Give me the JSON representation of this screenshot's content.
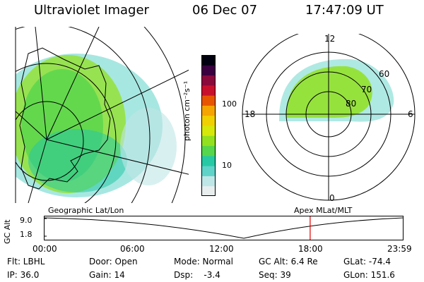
{
  "header": {
    "instrument": "Ultraviolet Imager",
    "date": "06 Dec 07",
    "time": "17:47:09 UT"
  },
  "colorbar": {
    "unit_label": "photon cm⁻²s⁻¹",
    "tick_labels": [
      "100",
      "10"
    ],
    "colors": [
      "#e8eeee",
      "#bfe6e6",
      "#5fd3c8",
      "#27c9a5",
      "#56d64c",
      "#92e020",
      "#d5e80a",
      "#f0d000",
      "#f5a400",
      "#e85500",
      "#c8102d",
      "#8a0a3c",
      "#3a0040",
      "#000010"
    ]
  },
  "polar_plot": {
    "mlt_labels": {
      "top": "12",
      "left": "18",
      "right": "6",
      "bottom": "0"
    },
    "mlat_labels": [
      "60",
      "70",
      "80"
    ]
  },
  "timeline": {
    "y_axis_label": "GC Alt",
    "y_ticks": [
      "9.0",
      "1.8"
    ],
    "left_caption": "Geographic Lat/Lon",
    "right_caption": "Apex  MLat/MLT",
    "x_ticks": [
      "00:00",
      "06:00",
      "12:00",
      "18:00",
      "23:59"
    ],
    "current_time_fraction": 0.7414
  },
  "status": {
    "filter": "Flt: LBHL",
    "ip": "IP: 36.0",
    "door": "Door: Open",
    "gain": "Gain: 14",
    "mode": "Mode: Normal",
    "dsp": "Dsp:    -3.4",
    "gc_alt": "GC Alt: 6.4 Re",
    "seq": "Seq: 39",
    "glat": "GLat: -74.4",
    "glon": "GLon: 151.6"
  }
}
